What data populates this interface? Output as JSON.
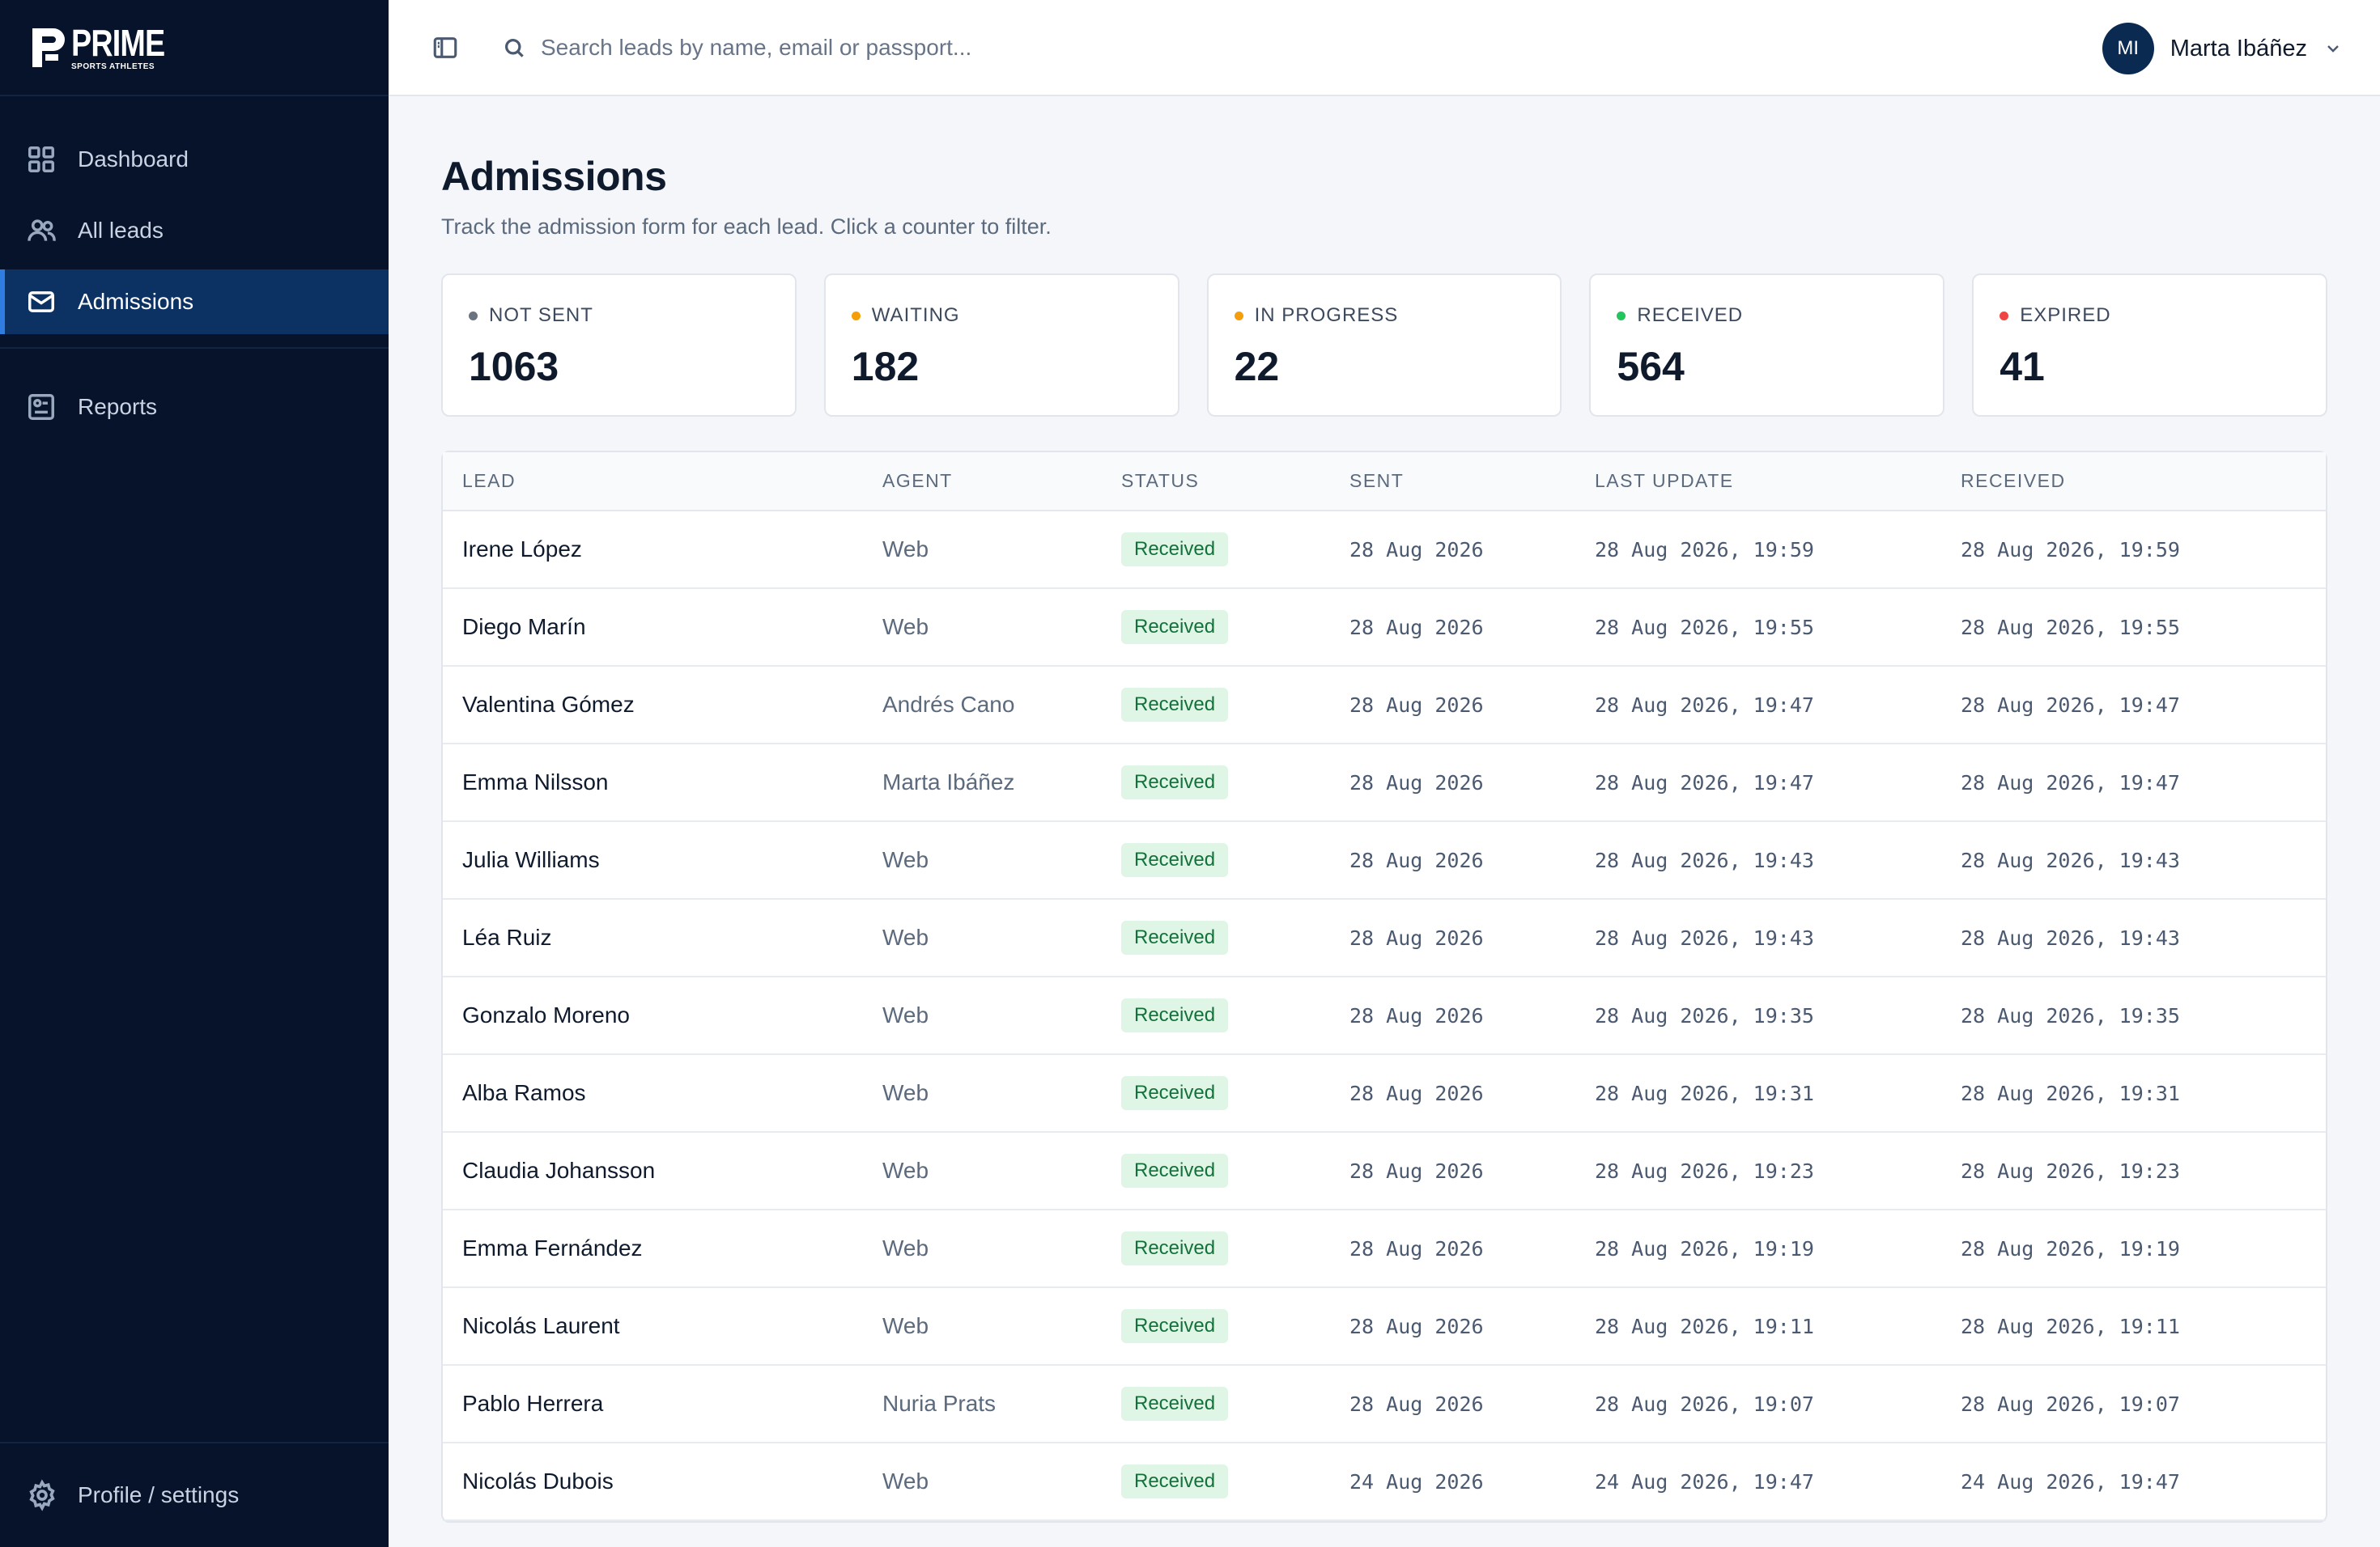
{
  "brand": {
    "title": "PRIME",
    "subtitle": "SPORTS ATHLETES"
  },
  "sidebar": {
    "items": [
      {
        "label": "Dashboard",
        "icon": "grid-icon"
      },
      {
        "label": "All leads",
        "icon": "users-icon"
      },
      {
        "label": "Admissions",
        "icon": "mail-icon",
        "active": true
      },
      {
        "label": "Reports",
        "icon": "report-icon"
      }
    ],
    "footer": {
      "label": "Profile / settings",
      "icon": "gear-icon"
    }
  },
  "topbar": {
    "search_placeholder": "Search leads by name, email or passport...",
    "user": {
      "initials": "MI",
      "name": "Marta Ibáñez"
    }
  },
  "page": {
    "title": "Admissions",
    "subtitle": "Track the admission form for each lead. Click a counter to filter."
  },
  "counters": [
    {
      "label": "NOT SENT",
      "value": "1063",
      "color": "#6b7280"
    },
    {
      "label": "WAITING",
      "value": "182",
      "color": "#f59e0b"
    },
    {
      "label": "IN PROGRESS",
      "value": "22",
      "color": "#f59e0b"
    },
    {
      "label": "RECEIVED",
      "value": "564",
      "color": "#22c55e"
    },
    {
      "label": "EXPIRED",
      "value": "41",
      "color": "#ef4444"
    }
  ],
  "table": {
    "columns": [
      "LEAD",
      "AGENT",
      "STATUS",
      "SENT",
      "LAST UPDATE",
      "RECEIVED"
    ],
    "rows": [
      {
        "lead": "Irene López",
        "agent": "Web",
        "status": "Received",
        "sent": "28 Aug 2026",
        "last_update": "28 Aug 2026, 19:59",
        "received": "28 Aug 2026, 19:59"
      },
      {
        "lead": "Diego Marín",
        "agent": "Web",
        "status": "Received",
        "sent": "28 Aug 2026",
        "last_update": "28 Aug 2026, 19:55",
        "received": "28 Aug 2026, 19:55"
      },
      {
        "lead": "Valentina Gómez",
        "agent": "Andrés Cano",
        "status": "Received",
        "sent": "28 Aug 2026",
        "last_update": "28 Aug 2026, 19:47",
        "received": "28 Aug 2026, 19:47"
      },
      {
        "lead": "Emma Nilsson",
        "agent": "Marta Ibáñez",
        "status": "Received",
        "sent": "28 Aug 2026",
        "last_update": "28 Aug 2026, 19:47",
        "received": "28 Aug 2026, 19:47"
      },
      {
        "lead": "Julia Williams",
        "agent": "Web",
        "status": "Received",
        "sent": "28 Aug 2026",
        "last_update": "28 Aug 2026, 19:43",
        "received": "28 Aug 2026, 19:43"
      },
      {
        "lead": "Léa Ruiz",
        "agent": "Web",
        "status": "Received",
        "sent": "28 Aug 2026",
        "last_update": "28 Aug 2026, 19:43",
        "received": "28 Aug 2026, 19:43"
      },
      {
        "lead": "Gonzalo Moreno",
        "agent": "Web",
        "status": "Received",
        "sent": "28 Aug 2026",
        "last_update": "28 Aug 2026, 19:35",
        "received": "28 Aug 2026, 19:35"
      },
      {
        "lead": "Alba Ramos",
        "agent": "Web",
        "status": "Received",
        "sent": "28 Aug 2026",
        "last_update": "28 Aug 2026, 19:31",
        "received": "28 Aug 2026, 19:31"
      },
      {
        "lead": "Claudia Johansson",
        "agent": "Web",
        "status": "Received",
        "sent": "28 Aug 2026",
        "last_update": "28 Aug 2026, 19:23",
        "received": "28 Aug 2026, 19:23"
      },
      {
        "lead": "Emma Fernández",
        "agent": "Web",
        "status": "Received",
        "sent": "28 Aug 2026",
        "last_update": "28 Aug 2026, 19:19",
        "received": "28 Aug 2026, 19:19"
      },
      {
        "lead": "Nicolás Laurent",
        "agent": "Web",
        "status": "Received",
        "sent": "28 Aug 2026",
        "last_update": "28 Aug 2026, 19:11",
        "received": "28 Aug 2026, 19:11"
      },
      {
        "lead": "Pablo Herrera",
        "agent": "Nuria Prats",
        "status": "Received",
        "sent": "28 Aug 2026",
        "last_update": "28 Aug 2026, 19:07",
        "received": "28 Aug 2026, 19:07"
      },
      {
        "lead": "Nicolás Dubois",
        "agent": "Web",
        "status": "Received",
        "sent": "24 Aug 2026",
        "last_update": "24 Aug 2026, 19:47",
        "received": "24 Aug 2026, 19:47"
      }
    ]
  }
}
